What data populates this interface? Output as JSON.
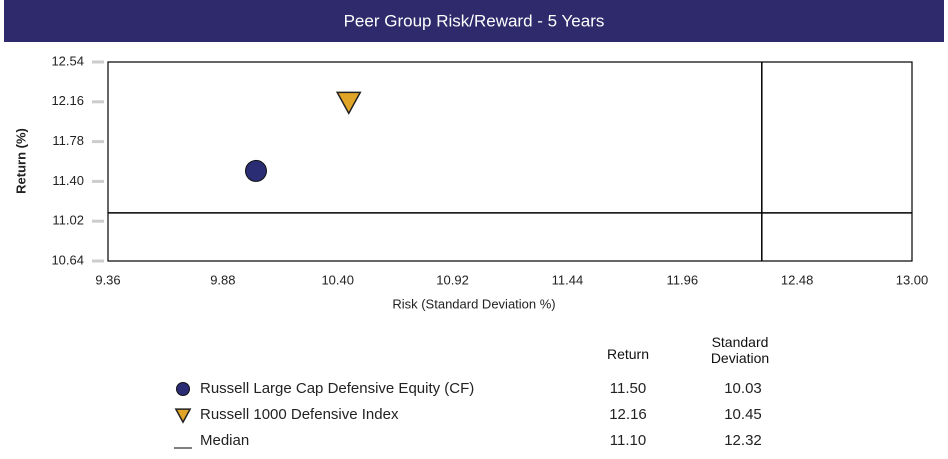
{
  "chart_data": {
    "type": "scatter",
    "title": "Peer Group Risk/Reward - 5 Years",
    "x_label": "Risk (Standard Deviation %)",
    "y_label": "Return (%)",
    "xlim": [
      9.36,
      13.0
    ],
    "xticks": [
      9.36,
      9.88,
      {
        "value": 10.4,
        "label": "10.40"
      },
      10.92,
      11.44,
      11.96,
      12.48,
      {
        "value": 13.0,
        "label": "13.00"
      }
    ],
    "ylim": [
      10.64,
      12.54
    ],
    "yticks": [
      10.64,
      11.02,
      {
        "value": 11.4,
        "label": "11.40"
      },
      11.78,
      12.16,
      12.54
    ],
    "table_headers": [
      "Return",
      "Standard Deviation"
    ],
    "series": [
      {
        "name": "Russell Large Cap Defensive Equity (CF)",
        "color": "#2b2d74",
        "marker": "circle",
        "x": [
          10.03
        ],
        "values": [
          11.5
        ],
        "value_labels": [
          "11.50"
        ]
      },
      {
        "name": "Russell 1000 Defensive Index",
        "color": "#e0a526",
        "marker": "triangle",
        "x": [
          10.45
        ],
        "values": [
          12.16
        ]
      }
    ],
    "median": {
      "name": "Median",
      "color": "#000000",
      "x": 12.32,
      "y": 11.1,
      "y_label": "11.10"
    }
  }
}
